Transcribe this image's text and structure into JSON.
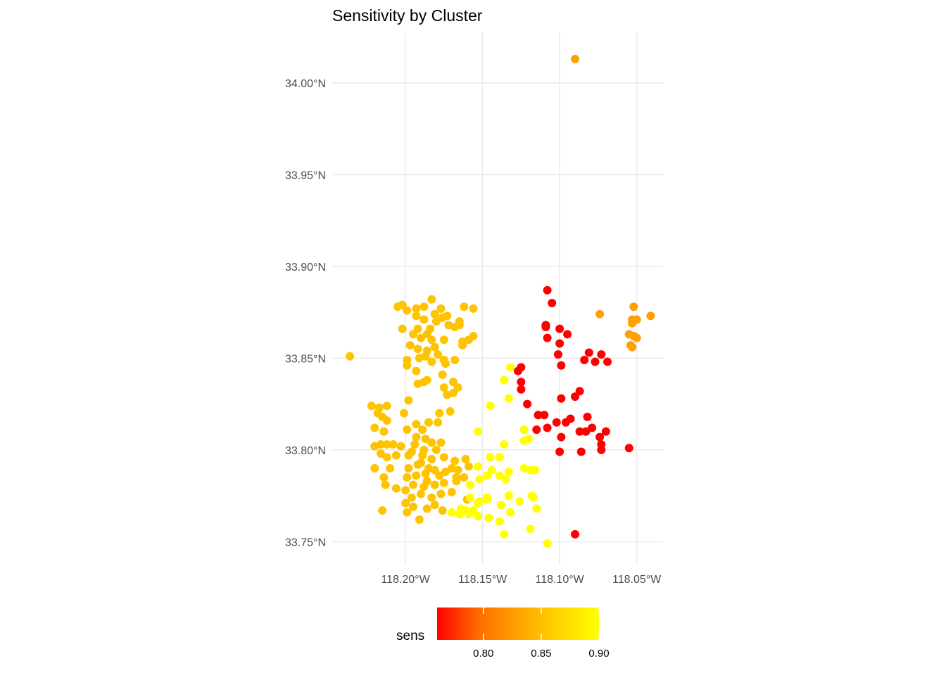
{
  "chart_data": {
    "type": "scatter",
    "title": "Sensitivity by Cluster",
    "xlabel": "",
    "ylabel": "",
    "x_unit": "longitude (degrees, negative = W)",
    "y_unit": "latitude (degrees N)",
    "xlim": [
      -118.2475,
      -118.0325
    ],
    "ylim": [
      33.7375,
      34.0275
    ],
    "x_ticks": [
      -118.2,
      -118.15,
      -118.1,
      -118.05
    ],
    "x_tick_labels": [
      "118.20°W",
      "118.15°W",
      "118.10°W",
      "118.05°W"
    ],
    "y_ticks": [
      33.75,
      33.8,
      33.85,
      33.9,
      33.95,
      34.0
    ],
    "y_tick_labels": [
      "33.75°N",
      "33.80°N",
      "33.85°N",
      "33.90°N",
      "33.95°N",
      "34.00°N"
    ],
    "grid": true,
    "legend": {
      "title": "sens",
      "position": "bottom",
      "range": [
        0.76,
        0.9
      ],
      "breaks": [
        0.8,
        0.85,
        0.9
      ],
      "break_labels": [
        "0.80",
        "0.85",
        "0.90"
      ],
      "colors": [
        "#ff0000",
        "#ff6a00",
        "#ffa200",
        "#ffd400",
        "#ffff00"
      ]
    },
    "groups": [
      {
        "sens": 0.765,
        "color": "#fe0000",
        "points": [
          [
            -118.108,
            33.887
          ],
          [
            -118.105,
            33.88
          ],
          [
            -118.109,
            33.868
          ],
          [
            -118.109,
            33.867
          ],
          [
            -118.108,
            33.861
          ],
          [
            -118.1,
            33.866
          ],
          [
            -118.095,
            33.863
          ],
          [
            -118.1,
            33.858
          ],
          [
            -118.101,
            33.852
          ],
          [
            -118.099,
            33.846
          ],
          [
            -118.081,
            33.853
          ],
          [
            -118.073,
            33.852
          ],
          [
            -118.084,
            33.849
          ],
          [
            -118.077,
            33.848
          ],
          [
            -118.069,
            33.848
          ],
          [
            -118.127,
            33.843
          ],
          [
            -118.125,
            33.845
          ],
          [
            -118.125,
            33.837
          ],
          [
            -118.125,
            33.833
          ],
          [
            -118.087,
            33.832
          ],
          [
            -118.09,
            33.829
          ],
          [
            -118.099,
            33.828
          ],
          [
            -118.121,
            33.825
          ],
          [
            -118.114,
            33.819
          ],
          [
            -118.11,
            33.819
          ],
          [
            -118.082,
            33.818
          ],
          [
            -118.102,
            33.815
          ],
          [
            -118.096,
            33.815
          ],
          [
            -118.093,
            33.817
          ],
          [
            -118.108,
            33.812
          ],
          [
            -118.115,
            33.811
          ],
          [
            -118.079,
            33.812
          ],
          [
            -118.087,
            33.81
          ],
          [
            -118.083,
            33.81
          ],
          [
            -118.07,
            33.81
          ],
          [
            -118.099,
            33.807
          ],
          [
            -118.074,
            33.807
          ],
          [
            -118.073,
            33.803
          ],
          [
            -118.073,
            33.8
          ],
          [
            -118.055,
            33.801
          ],
          [
            -118.1,
            33.799
          ],
          [
            -118.086,
            33.799
          ],
          [
            -118.09,
            33.754
          ]
        ]
      },
      {
        "sens": 0.835,
        "color": "#fea000",
        "points": [
          [
            -118.09,
            34.013
          ],
          [
            -118.074,
            33.874
          ],
          [
            -118.052,
            33.878
          ],
          [
            -118.041,
            33.873
          ],
          [
            -118.053,
            33.871
          ],
          [
            -118.053,
            33.869
          ],
          [
            -118.05,
            33.871
          ],
          [
            -118.055,
            33.863
          ],
          [
            -118.052,
            33.862
          ],
          [
            -118.05,
            33.861
          ],
          [
            -118.054,
            33.857
          ],
          [
            -118.053,
            33.856
          ]
        ]
      },
      {
        "sens": 0.865,
        "color": "#fec400",
        "points": [
          [
            -118.236,
            33.851
          ],
          [
            -118.183,
            33.882
          ],
          [
            -118.205,
            33.878
          ],
          [
            -118.202,
            33.879
          ],
          [
            -118.199,
            33.876
          ],
          [
            -118.193,
            33.877
          ],
          [
            -118.188,
            33.878
          ],
          [
            -118.177,
            33.877
          ],
          [
            -118.162,
            33.878
          ],
          [
            -118.156,
            33.877
          ],
          [
            -118.181,
            33.874
          ],
          [
            -118.173,
            33.873
          ],
          [
            -118.193,
            33.873
          ],
          [
            -118.188,
            33.871
          ],
          [
            -118.18,
            33.87
          ],
          [
            -118.176,
            33.872
          ],
          [
            -118.165,
            33.87
          ],
          [
            -118.184,
            33.866
          ],
          [
            -118.192,
            33.866
          ],
          [
            -118.202,
            33.866
          ],
          [
            -118.172,
            33.868
          ],
          [
            -118.168,
            33.867
          ],
          [
            -118.165,
            33.868
          ],
          [
            -118.186,
            33.863
          ],
          [
            -118.195,
            33.863
          ],
          [
            -118.19,
            33.861
          ],
          [
            -118.183,
            33.86
          ],
          [
            -118.175,
            33.86
          ],
          [
            -118.163,
            33.859
          ],
          [
            -118.159,
            33.86
          ],
          [
            -118.156,
            33.862
          ],
          [
            -118.197,
            33.857
          ],
          [
            -118.192,
            33.855
          ],
          [
            -118.186,
            33.854
          ],
          [
            -118.181,
            33.856
          ],
          [
            -118.163,
            33.857
          ],
          [
            -118.187,
            33.851
          ],
          [
            -118.179,
            33.852
          ],
          [
            -118.199,
            33.849
          ],
          [
            -118.191,
            33.85
          ],
          [
            -118.183,
            33.848
          ],
          [
            -118.175,
            33.849
          ],
          [
            -118.168,
            33.849
          ],
          [
            -118.174,
            33.847
          ],
          [
            -118.199,
            33.846
          ],
          [
            -118.193,
            33.843
          ],
          [
            -118.176,
            33.841
          ],
          [
            -118.186,
            33.838
          ],
          [
            -118.192,
            33.836
          ],
          [
            -118.188,
            33.837
          ],
          [
            -118.169,
            33.837
          ],
          [
            -118.175,
            33.834
          ],
          [
            -118.173,
            33.83
          ],
          [
            -118.169,
            33.831
          ],
          [
            -118.166,
            33.834
          ],
          [
            -118.198,
            33.827
          ],
          [
            -118.222,
            33.824
          ],
          [
            -118.217,
            33.823
          ],
          [
            -118.212,
            33.824
          ],
          [
            -118.215,
            33.818
          ],
          [
            -118.212,
            33.816
          ],
          [
            -118.218,
            33.82
          ],
          [
            -118.201,
            33.82
          ],
          [
            -118.193,
            33.814
          ],
          [
            -118.185,
            33.815
          ],
          [
            -118.178,
            33.82
          ],
          [
            -118.171,
            33.821
          ],
          [
            -118.179,
            33.815
          ],
          [
            -118.189,
            33.811
          ],
          [
            -118.199,
            33.811
          ],
          [
            -118.22,
            33.812
          ],
          [
            -118.214,
            33.81
          ],
          [
            -118.216,
            33.803
          ],
          [
            -118.212,
            33.803
          ],
          [
            -118.22,
            33.802
          ],
          [
            -118.208,
            33.803
          ],
          [
            -118.203,
            33.802
          ],
          [
            -118.193,
            33.807
          ],
          [
            -118.187,
            33.806
          ],
          [
            -118.183,
            33.804
          ],
          [
            -118.177,
            33.804
          ],
          [
            -118.18,
            33.8
          ],
          [
            -118.188,
            33.8
          ],
          [
            -118.194,
            33.803
          ],
          [
            -118.198,
            33.797
          ],
          [
            -118.206,
            33.797
          ],
          [
            -118.212,
            33.796
          ],
          [
            -118.216,
            33.798
          ],
          [
            -118.22,
            33.79
          ],
          [
            -118.21,
            33.79
          ],
          [
            -118.198,
            33.79
          ],
          [
            -118.19,
            33.793
          ],
          [
            -118.183,
            33.795
          ],
          [
            -118.175,
            33.796
          ],
          [
            -118.168,
            33.794
          ],
          [
            -118.161,
            33.795
          ],
          [
            -118.159,
            33.791
          ],
          [
            -118.166,
            33.789
          ],
          [
            -118.174,
            33.788
          ],
          [
            -118.181,
            33.789
          ],
          [
            -118.187,
            33.787
          ],
          [
            -118.193,
            33.786
          ],
          [
            -118.199,
            33.785
          ],
          [
            -118.214,
            33.785
          ],
          [
            -118.213,
            33.781
          ],
          [
            -118.206,
            33.779
          ],
          [
            -118.2,
            33.778
          ],
          [
            -118.195,
            33.781
          ],
          [
            -118.188,
            33.78
          ],
          [
            -118.181,
            33.781
          ],
          [
            -118.175,
            33.782
          ],
          [
            -118.167,
            33.783
          ],
          [
            -118.162,
            33.785
          ],
          [
            -118.19,
            33.776
          ],
          [
            -118.183,
            33.774
          ],
          [
            -118.177,
            33.776
          ],
          [
            -118.17,
            33.777
          ],
          [
            -118.196,
            33.774
          ],
          [
            -118.2,
            33.771
          ],
          [
            -118.195,
            33.769
          ],
          [
            -118.186,
            33.768
          ],
          [
            -118.181,
            33.77
          ],
          [
            -118.176,
            33.767
          ],
          [
            -118.199,
            33.766
          ],
          [
            -118.191,
            33.762
          ],
          [
            -118.215,
            33.767
          ],
          [
            -118.16,
            33.773
          ],
          [
            -118.167,
            33.785
          ],
          [
            -118.185,
            33.79
          ],
          [
            -118.192,
            33.792
          ],
          [
            -118.186,
            33.783
          ],
          [
            -118.178,
            33.786
          ],
          [
            -118.17,
            33.79
          ],
          [
            -118.196,
            33.799
          ],
          [
            -118.189,
            33.797
          ]
        ]
      },
      {
        "sens": 0.9,
        "color": "#ffff00",
        "points": [
          [
            -118.132,
            33.845
          ],
          [
            -118.136,
            33.838
          ],
          [
            -118.133,
            33.828
          ],
          [
            -118.145,
            33.824
          ],
          [
            -118.123,
            33.811
          ],
          [
            -118.153,
            33.81
          ],
          [
            -118.12,
            33.806
          ],
          [
            -118.123,
            33.805
          ],
          [
            -118.136,
            33.803
          ],
          [
            -118.145,
            33.796
          ],
          [
            -118.139,
            33.796
          ],
          [
            -118.153,
            33.791
          ],
          [
            -118.123,
            33.79
          ],
          [
            -118.119,
            33.789
          ],
          [
            -118.116,
            33.789
          ],
          [
            -118.144,
            33.789
          ],
          [
            -118.147,
            33.786
          ],
          [
            -118.139,
            33.786
          ],
          [
            -118.135,
            33.784
          ],
          [
            -118.133,
            33.788
          ],
          [
            -118.152,
            33.784
          ],
          [
            -118.158,
            33.781
          ],
          [
            -118.133,
            33.775
          ],
          [
            -118.158,
            33.774
          ],
          [
            -118.147,
            33.773
          ],
          [
            -118.152,
            33.772
          ],
          [
            -118.147,
            33.774
          ],
          [
            -118.153,
            33.771
          ],
          [
            -118.156,
            33.767
          ],
          [
            -118.159,
            33.765
          ],
          [
            -118.165,
            33.765
          ],
          [
            -118.17,
            33.766
          ],
          [
            -118.161,
            33.767
          ],
          [
            -118.153,
            33.764
          ],
          [
            -118.146,
            33.763
          ],
          [
            -118.138,
            33.77
          ],
          [
            -118.132,
            33.766
          ],
          [
            -118.126,
            33.772
          ],
          [
            -118.118,
            33.775
          ],
          [
            -118.117,
            33.774
          ],
          [
            -118.115,
            33.768
          ],
          [
            -118.119,
            33.757
          ],
          [
            -118.139,
            33.761
          ],
          [
            -118.136,
            33.754
          ],
          [
            -118.108,
            33.749
          ],
          [
            -118.164,
            33.768
          ]
        ]
      }
    ]
  }
}
